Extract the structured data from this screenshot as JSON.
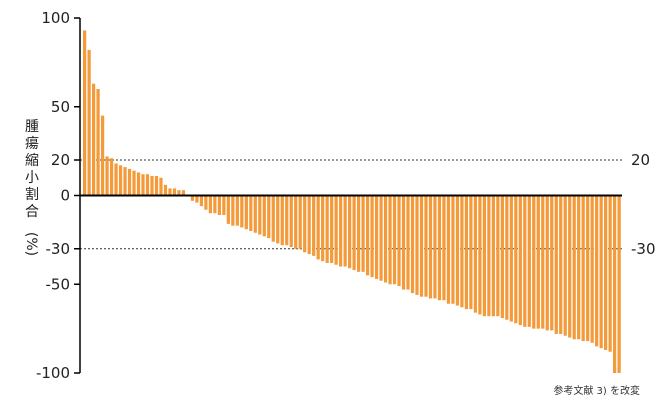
{
  "chart_data": {
    "type": "bar",
    "ylabel_chars": [
      "腫",
      "瘍",
      "縮",
      "小",
      "割",
      "合"
    ],
    "ylabel_unit": "(%)",
    "yticks": [
      {
        "value": 100,
        "label": "100"
      },
      {
        "value": 50,
        "label": "50"
      },
      {
        "value": 20,
        "label": "20"
      },
      {
        "value": 0,
        "label": "0"
      },
      {
        "value": -30,
        "label": "-30"
      },
      {
        "value": -50,
        "label": "-50"
      },
      {
        "value": -100,
        "label": "-100"
      }
    ],
    "ylim": [
      -100,
      100
    ],
    "reference_lines": [
      {
        "value": 20,
        "label": "20"
      },
      {
        "value": -30,
        "label": "-30"
      }
    ],
    "bar_color": "#F39A3A",
    "values": [
      93,
      82,
      63,
      60,
      45,
      22,
      21,
      18,
      17,
      16,
      15,
      14,
      13,
      12,
      12,
      11,
      11,
      10,
      6,
      4,
      4,
      3,
      3,
      0,
      -3,
      -4,
      -6,
      -8,
      -10,
      -10,
      -11,
      -11,
      -16,
      -17,
      -17,
      -18,
      -19,
      -20,
      -21,
      -22,
      -23,
      -24,
      -26,
      -27,
      -28,
      -28,
      -29,
      -30,
      -30,
      -32,
      -33,
      -34,
      -36,
      -37,
      -38,
      -38,
      -39,
      -40,
      -40,
      -41,
      -42,
      -43,
      -43,
      -45,
      -46,
      -47,
      -48,
      -49,
      -50,
      -50,
      -51,
      -53,
      -53,
      -55,
      -56,
      -57,
      -57,
      -58,
      -58,
      -59,
      -59,
      -61,
      -61,
      -62,
      -63,
      -64,
      -64,
      -66,
      -67,
      -68,
      -68,
      -68,
      -68,
      -69,
      -70,
      -71,
      -72,
      -73,
      -74,
      -74,
      -75,
      -75,
      -75,
      -76,
      -76,
      -78,
      -78,
      -79,
      -80,
      -81,
      -81,
      -82,
      -82,
      -83,
      -85,
      -86,
      -87,
      -88,
      -100,
      -100
    ]
  },
  "source_note": "参考文献 3) を改変"
}
